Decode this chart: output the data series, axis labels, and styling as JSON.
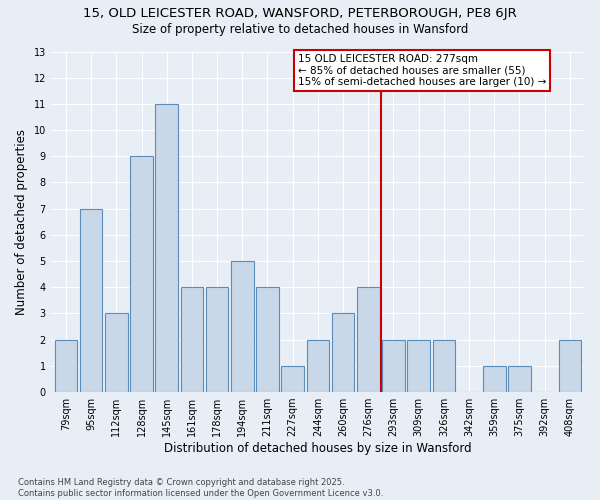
{
  "title1": "15, OLD LEICESTER ROAD, WANSFORD, PETERBOROUGH, PE8 6JR",
  "title2": "Size of property relative to detached houses in Wansford",
  "xlabel": "Distribution of detached houses by size in Wansford",
  "ylabel": "Number of detached properties",
  "categories": [
    "79sqm",
    "95sqm",
    "112sqm",
    "128sqm",
    "145sqm",
    "161sqm",
    "178sqm",
    "194sqm",
    "211sqm",
    "227sqm",
    "244sqm",
    "260sqm",
    "276sqm",
    "293sqm",
    "309sqm",
    "326sqm",
    "342sqm",
    "359sqm",
    "375sqm",
    "392sqm",
    "408sqm"
  ],
  "values": [
    2,
    7,
    3,
    9,
    11,
    4,
    4,
    5,
    4,
    1,
    2,
    3,
    4,
    2,
    2,
    2,
    0,
    1,
    1,
    0,
    2
  ],
  "bar_color": "#c8d8e8",
  "bar_edge_color": "#5b8db8",
  "subject_line_idx": 12,
  "subject_label": "15 OLD LEICESTER ROAD: 277sqm",
  "pct_smaller": "← 85% of detached houses are smaller (55)",
  "pct_larger": "15% of semi-detached houses are larger (10) →",
  "annotation_box_color": "#ffffff",
  "annotation_box_edge": "#cc0000",
  "vline_color": "#cc0000",
  "ylim": [
    0,
    13
  ],
  "yticks": [
    0,
    1,
    2,
    3,
    4,
    5,
    6,
    7,
    8,
    9,
    10,
    11,
    12,
    13
  ],
  "footnote1": "Contains HM Land Registry data © Crown copyright and database right 2025.",
  "footnote2": "Contains public sector information licensed under the Open Government Licence v3.0.",
  "bg_color": "#e8eef5",
  "plot_bg_color": "#e8eef5",
  "title1_fontsize": 9.5,
  "title2_fontsize": 8.5,
  "tick_fontsize": 7.0,
  "ylabel_fontsize": 8.5,
  "xlabel_fontsize": 8.5,
  "footnote_fontsize": 6.0,
  "annotation_fontsize": 7.5
}
